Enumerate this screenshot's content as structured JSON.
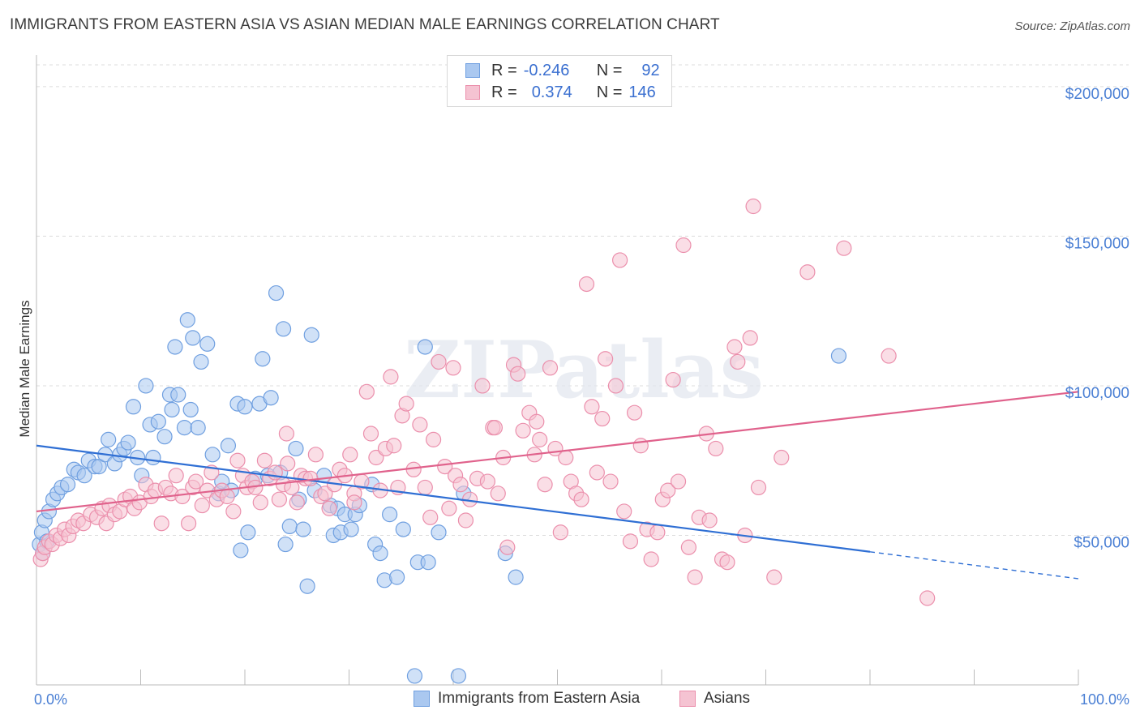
{
  "header": {
    "title": "IMMIGRANTS FROM EASTERN ASIA VS ASIAN MEDIAN MALE EARNINGS CORRELATION CHART",
    "source": "Source: ZipAtlas.com"
  },
  "legend": {
    "rows": [
      {
        "r_label": "R =",
        "r_value": "-0.246",
        "n_label": "N =",
        "n_value": "92"
      },
      {
        "r_label": "R =",
        "r_value": "0.374",
        "n_label": "N =",
        "n_value": "146"
      }
    ]
  },
  "chart_data": {
    "type": "scatter",
    "ylabel": "Median Male Earnings",
    "xlim": [
      0,
      100
    ],
    "ylim": [
      0,
      210000
    ],
    "x_tick_labels": [
      "0.0%",
      "100.0%"
    ],
    "y_ticks": [
      {
        "value": 50000,
        "label": "$50,000"
      },
      {
        "value": 100000,
        "label": "$100,000"
      },
      {
        "value": 150000,
        "label": "$150,000"
      },
      {
        "value": 200000,
        "label": "$200,000"
      }
    ],
    "grid": true,
    "watermark": "ZIPatlas",
    "series": [
      {
        "name": "Immigrants from Eastern Asia",
        "color": "#6f9fe0",
        "fill": "#aac8f0",
        "trend": {
          "x0": 0,
          "y0": 80000,
          "x1": 80,
          "y1": 44500,
          "dash_to_x": 100,
          "dash_to_y": 35500,
          "color": "#2f6fd4"
        },
        "points": [
          [
            0.3,
            47000
          ],
          [
            0.5,
            51000
          ],
          [
            0.8,
            55000
          ],
          [
            1.2,
            58000
          ],
          [
            1.6,
            62000
          ],
          [
            2,
            64000
          ],
          [
            2.4,
            66000
          ],
          [
            3,
            67000
          ],
          [
            3.6,
            72000
          ],
          [
            4,
            71000
          ],
          [
            4.6,
            70000
          ],
          [
            5,
            75000
          ],
          [
            5.6,
            73000
          ],
          [
            6,
            73000
          ],
          [
            6.6,
            77000
          ],
          [
            6.9,
            82000
          ],
          [
            7.5,
            74000
          ],
          [
            8,
            77000
          ],
          [
            8.4,
            79000
          ],
          [
            8.8,
            81000
          ],
          [
            9.7,
            76000
          ],
          [
            9.3,
            93000
          ],
          [
            10.1,
            70000
          ],
          [
            10.5,
            100000
          ],
          [
            10.9,
            87000
          ],
          [
            11.2,
            76000
          ],
          [
            11.7,
            88000
          ],
          [
            12.3,
            83000
          ],
          [
            12.8,
            97000
          ],
          [
            13,
            92000
          ],
          [
            13.3,
            113000
          ],
          [
            13.6,
            97000
          ],
          [
            14.2,
            86000
          ],
          [
            14.8,
            92000
          ],
          [
            15,
            116000
          ],
          [
            15.5,
            86000
          ],
          [
            15.8,
            108000
          ],
          [
            16.4,
            114000
          ],
          [
            14.5,
            122000
          ],
          [
            16.9,
            77000
          ],
          [
            17.5,
            64000
          ],
          [
            17.8,
            68000
          ],
          [
            18.4,
            80000
          ],
          [
            18.7,
            65000
          ],
          [
            19.3,
            94000
          ],
          [
            19.6,
            45000
          ],
          [
            20,
            93000
          ],
          [
            20.3,
            51000
          ],
          [
            21,
            69000
          ],
          [
            21.4,
            94000
          ],
          [
            21.7,
            109000
          ],
          [
            22.2,
            70000
          ],
          [
            22.5,
            96000
          ],
          [
            23,
            131000
          ],
          [
            23.4,
            71000
          ],
          [
            23.7,
            119000
          ],
          [
            23.9,
            47000
          ],
          [
            24.3,
            53000
          ],
          [
            24.9,
            79000
          ],
          [
            25.2,
            62000
          ],
          [
            25.6,
            52000
          ],
          [
            26,
            33000
          ],
          [
            26.4,
            117000
          ],
          [
            26.7,
            65000
          ],
          [
            27.6,
            70000
          ],
          [
            28.2,
            60000
          ],
          [
            28.5,
            50000
          ],
          [
            28.9,
            59000
          ],
          [
            29.2,
            51000
          ],
          [
            29.6,
            57000
          ],
          [
            30.2,
            52000
          ],
          [
            30.6,
            57000
          ],
          [
            31,
            60000
          ],
          [
            32.2,
            67000
          ],
          [
            32.5,
            47000
          ],
          [
            33,
            44000
          ],
          [
            33.4,
            35000
          ],
          [
            33.9,
            57000
          ],
          [
            34.6,
            36000
          ],
          [
            35.2,
            52000
          ],
          [
            36.6,
            41000
          ],
          [
            37.3,
            113000
          ],
          [
            37.6,
            41000
          ],
          [
            38.6,
            51000
          ],
          [
            40.5,
            3000
          ],
          [
            36.3,
            3000
          ],
          [
            41,
            64000
          ],
          [
            45,
            44000
          ],
          [
            46,
            36000
          ],
          [
            77,
            110000
          ],
          [
            0.6,
            44000
          ],
          [
            1,
            48000
          ]
        ]
      },
      {
        "name": "Asians",
        "color": "#eb8fac",
        "fill": "#f5c3d2",
        "trend": {
          "x0": 0,
          "y0": 58000,
          "x1": 100,
          "y1": 98000,
          "color": "#e0628c"
        },
        "points": [
          [
            0.4,
            42000
          ],
          [
            0.6,
            44000
          ],
          [
            0.8,
            46000
          ],
          [
            1.2,
            48000
          ],
          [
            1.5,
            47000
          ],
          [
            1.9,
            50000
          ],
          [
            2.3,
            49000
          ],
          [
            2.7,
            52000
          ],
          [
            3.1,
            50000
          ],
          [
            3.5,
            53000
          ],
          [
            4,
            55000
          ],
          [
            4.5,
            54000
          ],
          [
            5.2,
            57000
          ],
          [
            5.8,
            56000
          ],
          [
            6.3,
            59000
          ],
          [
            6.7,
            54000
          ],
          [
            7,
            60000
          ],
          [
            7.5,
            57000
          ],
          [
            8,
            58000
          ],
          [
            8.5,
            62000
          ],
          [
            9,
            63000
          ],
          [
            9.4,
            59000
          ],
          [
            9.9,
            61000
          ],
          [
            10.5,
            67000
          ],
          [
            11,
            63000
          ],
          [
            11.4,
            65000
          ],
          [
            12,
            54000
          ],
          [
            12.4,
            66000
          ],
          [
            12.9,
            64000
          ],
          [
            13.4,
            70000
          ],
          [
            14,
            63000
          ],
          [
            14.6,
            54000
          ],
          [
            15,
            66000
          ],
          [
            15.3,
            68000
          ],
          [
            15.9,
            60000
          ],
          [
            16.4,
            65000
          ],
          [
            16.8,
            71000
          ],
          [
            17.3,
            62000
          ],
          [
            17.8,
            65000
          ],
          [
            18.3,
            63000
          ],
          [
            18.9,
            58000
          ],
          [
            19.3,
            75000
          ],
          [
            19.8,
            70000
          ],
          [
            20.2,
            66000
          ],
          [
            20.7,
            68000
          ],
          [
            21,
            66000
          ],
          [
            21.5,
            61000
          ],
          [
            21.9,
            75000
          ],
          [
            22.4,
            69000
          ],
          [
            22.9,
            71000
          ],
          [
            23.3,
            62000
          ],
          [
            23.7,
            67000
          ],
          [
            24.1,
            74000
          ],
          [
            24.5,
            66000
          ],
          [
            25,
            61000
          ],
          [
            25.4,
            70000
          ],
          [
            25.8,
            69000
          ],
          [
            26.3,
            69000
          ],
          [
            26.8,
            77000
          ],
          [
            27.3,
            63000
          ],
          [
            27.7,
            64000
          ],
          [
            28.1,
            59000
          ],
          [
            28.6,
            67000
          ],
          [
            29.1,
            72000
          ],
          [
            29.6,
            70000
          ],
          [
            30.1,
            77000
          ],
          [
            30.5,
            64000
          ],
          [
            31.2,
            68000
          ],
          [
            31.7,
            98000
          ],
          [
            32.1,
            84000
          ],
          [
            32.6,
            76000
          ],
          [
            33,
            65000
          ],
          [
            33.5,
            79000
          ],
          [
            34,
            103000
          ],
          [
            34.3,
            80000
          ],
          [
            34.7,
            66000
          ],
          [
            35.1,
            90000
          ],
          [
            35.5,
            94000
          ],
          [
            36.2,
            72000
          ],
          [
            36.8,
            87000
          ],
          [
            37.3,
            66000
          ],
          [
            37.8,
            56000
          ],
          [
            38.1,
            82000
          ],
          [
            38.6,
            108000
          ],
          [
            39.2,
            73000
          ],
          [
            39.6,
            59000
          ],
          [
            40.2,
            70000
          ],
          [
            40.7,
            67000
          ],
          [
            41.2,
            55000
          ],
          [
            41.6,
            62000
          ],
          [
            42.3,
            69000
          ],
          [
            42.8,
            100000
          ],
          [
            43.3,
            68000
          ],
          [
            43.8,
            86000
          ],
          [
            44.3,
            64000
          ],
          [
            44.8,
            76000
          ],
          [
            45.2,
            46000
          ],
          [
            45.8,
            107000
          ],
          [
            46.2,
            104000
          ],
          [
            46.7,
            85000
          ],
          [
            47.3,
            91000
          ],
          [
            47.8,
            77000
          ],
          [
            48.3,
            82000
          ],
          [
            48.8,
            67000
          ],
          [
            49.3,
            106000
          ],
          [
            49.8,
            79000
          ],
          [
            50.3,
            51000
          ],
          [
            50.8,
            76000
          ],
          [
            51.3,
            68000
          ],
          [
            51.8,
            64000
          ],
          [
            52.3,
            62000
          ],
          [
            52.8,
            134000
          ],
          [
            53.3,
            93000
          ],
          [
            53.8,
            71000
          ],
          [
            54.3,
            89000
          ],
          [
            54.6,
            109000
          ],
          [
            55.1,
            68000
          ],
          [
            55.6,
            100000
          ],
          [
            56,
            142000
          ],
          [
            56.4,
            58000
          ],
          [
            57,
            48000
          ],
          [
            57.4,
            91000
          ],
          [
            58,
            80000
          ],
          [
            58.6,
            52000
          ],
          [
            59,
            42000
          ],
          [
            59.6,
            51000
          ],
          [
            60.1,
            62000
          ],
          [
            60.6,
            65000
          ],
          [
            61.1,
            102000
          ],
          [
            61.6,
            68000
          ],
          [
            62.1,
            147000
          ],
          [
            62.6,
            46000
          ],
          [
            63.2,
            36000
          ],
          [
            63.6,
            56000
          ],
          [
            64.3,
            84000
          ],
          [
            64.6,
            55000
          ],
          [
            65.2,
            79000
          ],
          [
            65.8,
            42000
          ],
          [
            66.3,
            41000
          ],
          [
            67,
            113000
          ],
          [
            67.3,
            108000
          ],
          [
            68,
            50000
          ],
          [
            68.5,
            116000
          ],
          [
            68.8,
            160000
          ],
          [
            69.3,
            66000
          ],
          [
            70.8,
            36000
          ],
          [
            71.5,
            76000
          ],
          [
            74,
            138000
          ],
          [
            77.5,
            146000
          ],
          [
            81.8,
            110000
          ],
          [
            85.5,
            29000
          ],
          [
            30.5,
            61000
          ],
          [
            40,
            106000
          ],
          [
            44,
            86000
          ],
          [
            48,
            88000
          ],
          [
            24,
            84000
          ]
        ]
      }
    ]
  },
  "bottom_legend": {
    "items": [
      "Immigrants from Eastern Asia",
      "Asians"
    ]
  },
  "colors": {
    "blue_accent": "#3a6fd0",
    "axis_text": "#4a7fd4"
  }
}
